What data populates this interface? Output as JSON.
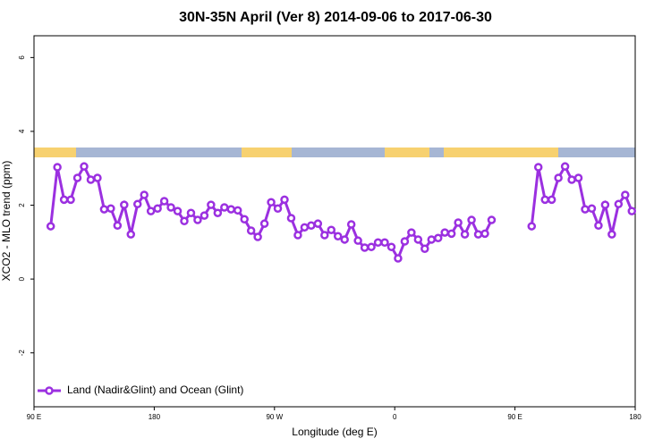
{
  "chart_data": {
    "type": "line",
    "title": "30N-35N April (Ver 8)   2014-09-06 to 2017-06-30",
    "x_label": "Longitude (deg E)",
    "y_label": "XCO2 - MLO trend (ppm)",
    "xlim": [
      90,
      540
    ],
    "ylim": [
      -3.46,
      6.59
    ],
    "xticks": [
      {
        "value": 90,
        "label": "90 E"
      },
      180,
      {
        "value": 270,
        "label": "90 W"
      },
      {
        "value": 360,
        "label": "0"
      },
      {
        "value": 450,
        "label": "90 E"
      },
      {
        "value": 540,
        "label": "180"
      }
    ],
    "yticks": [
      -2,
      0,
      2,
      4,
      6
    ],
    "legend": "bottom-left",
    "x": [
      102.5,
      107.5,
      112.5,
      117.5,
      122.5,
      127.5,
      132.5,
      137.5,
      142.5,
      147.5,
      152.5,
      157.5,
      162.5,
      167.5,
      172.5,
      177.5,
      182.5,
      187.5,
      192.5,
      197.5,
      202.5,
      207.5,
      212.5,
      217.5,
      222.5,
      227.5,
      232.5,
      237.5,
      242.5,
      247.5,
      252.5,
      257.5,
      262.5,
      267.5,
      272.5,
      277.5,
      282.5,
      287.5,
      292.5,
      297.5,
      302.5,
      307.5,
      312.5,
      317.5,
      322.5,
      327.5,
      332.5,
      337.5,
      342.5,
      347.5,
      352.5,
      357.5,
      362.5,
      367.5,
      372.5,
      377.5,
      382.5,
      387.5,
      392.5,
      397.5,
      402.5,
      407.5,
      412.5,
      417.5,
      422.5,
      427.5,
      432.5,
      447.5,
      462.5,
      467.5,
      472.5,
      477.5,
      482.5,
      487.5,
      492.5,
      497.5,
      502.5,
      507.5,
      512.5,
      517.5,
      522.5,
      527.5,
      532.5,
      537.5
    ],
    "series": [
      {
        "name": "Land (Nadir&Glint) and Ocean (Glint)",
        "color": "#9b30e0",
        "values": [
          1.43,
          3.03,
          2.15,
          2.15,
          2.74,
          3.05,
          2.69,
          2.74,
          1.89,
          1.91,
          1.45,
          2.01,
          1.21,
          2.03,
          2.28,
          1.84,
          1.91,
          2.11,
          1.94,
          1.84,
          1.57,
          1.79,
          1.6,
          1.72,
          2.01,
          1.79,
          1.94,
          1.89,
          1.86,
          1.62,
          1.31,
          1.14,
          1.5,
          2.08,
          1.91,
          2.15,
          1.65,
          1.19,
          1.4,
          1.45,
          1.5,
          1.19,
          1.33,
          1.16,
          1.07,
          1.48,
          1.04,
          0.85,
          0.87,
          0.99,
          0.99,
          0.87,
          0.56,
          1.02,
          1.26,
          1.07,
          0.82,
          1.07,
          1.11,
          1.26,
          1.23,
          1.53,
          1.21,
          1.6,
          1.21,
          1.23,
          1.6,
          null,
          1.43,
          3.03,
          2.15,
          2.15,
          2.74,
          3.05,
          2.69,
          2.74,
          1.89,
          1.91,
          1.45,
          2.01,
          1.21,
          2.03,
          2.28,
          1.84
        ]
      }
    ]
  }
}
